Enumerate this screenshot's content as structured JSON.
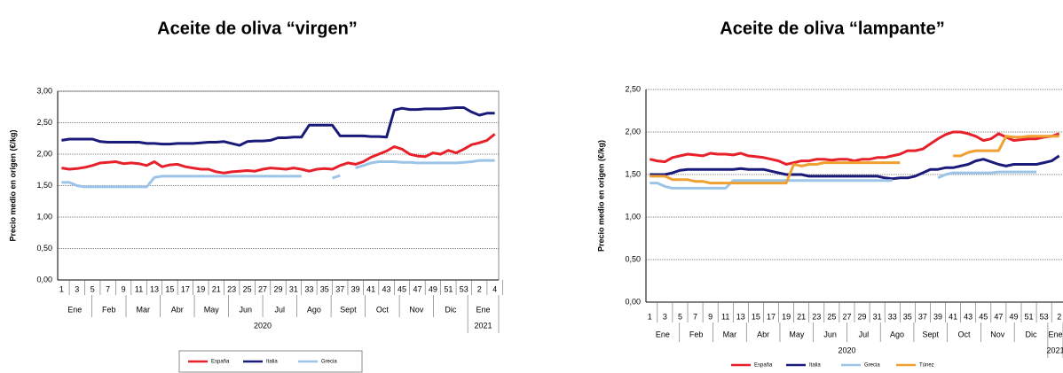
{
  "chart_data": [
    {
      "type": "line",
      "title": "Aceite de oliva “virgen”",
      "ylabel": "Precio medio en origen (€/kg)",
      "categories": [
        "1",
        null,
        "3",
        null,
        "5",
        null,
        "7",
        null,
        "9",
        null,
        "11",
        null,
        "13",
        null,
        "15",
        null,
        "17",
        null,
        "19",
        null,
        "21",
        null,
        "23",
        null,
        "25",
        null,
        "27",
        null,
        "29",
        null,
        "31",
        null,
        "33",
        null,
        "35",
        null,
        "37",
        null,
        "39",
        null,
        "41",
        null,
        "43",
        null,
        "45",
        null,
        "47",
        null,
        "49",
        null,
        "51",
        null,
        "53",
        null,
        "2",
        null,
        "4"
      ],
      "months": [
        "Ene",
        "Feb",
        "Mar",
        "Abr",
        "May",
        "Jun",
        "Jul",
        "Ago",
        "Sept",
        "Oct",
        "Nov",
        "Dic",
        "Ene"
      ],
      "years": [
        "2020",
        "2021"
      ],
      "ylim": [
        0,
        3
      ],
      "yticks": [
        {
          "value": 0,
          "label": "0,00"
        },
        {
          "value": 0.5,
          "label": "0,50"
        },
        {
          "value": 1,
          "label": "1,00"
        },
        {
          "value": 1.5,
          "label": "1,50"
        },
        {
          "value": 2,
          "label": "2,00"
        },
        {
          "value": 2.5,
          "label": "2,50"
        },
        {
          "value": 3,
          "label": "3,00"
        }
      ],
      "grid": true,
      "legend": "bottom",
      "series": [
        {
          "name": "España",
          "color": "#e8202a",
          "values": [
            1.78,
            1.76,
            1.77,
            1.79,
            1.82,
            1.86,
            1.87,
            1.88,
            1.85,
            1.86,
            1.85,
            1.82,
            1.88,
            1.8,
            1.83,
            1.84,
            1.8,
            1.78,
            1.76,
            1.76,
            1.72,
            1.7,
            1.72,
            1.73,
            1.74,
            1.73,
            1.76,
            1.78,
            1.77,
            1.76,
            1.78,
            1.76,
            1.73,
            1.76,
            1.77,
            1.76,
            1.82,
            1.86,
            1.84,
            1.88,
            1.95,
            2.0,
            2.05,
            2.12,
            2.08,
            2.0,
            1.97,
            1.96,
            2.02,
            2.0,
            2.06,
            2.02,
            2.08,
            2.15,
            2.18,
            2.22,
            2.32
          ]
        },
        {
          "name": "Italia",
          "color": "#1a1a7a",
          "values": [
            2.22,
            2.24,
            2.24,
            2.24,
            2.24,
            2.2,
            2.19,
            2.19,
            2.19,
            2.19,
            2.19,
            2.17,
            2.17,
            2.16,
            2.16,
            2.17,
            2.17,
            2.17,
            2.18,
            2.19,
            2.19,
            2.2,
            2.17,
            2.14,
            2.2,
            2.21,
            2.21,
            2.22,
            2.26,
            2.26,
            2.27,
            2.27,
            2.46,
            2.46,
            2.46,
            2.46,
            2.29,
            2.29,
            2.29,
            2.29,
            2.28,
            2.28,
            2.27,
            2.7,
            2.73,
            2.71,
            2.71,
            2.72,
            2.72,
            2.72,
            2.73,
            2.74,
            2.74,
            2.67,
            2.62,
            2.65,
            2.65
          ]
        },
        {
          "name": "Grecia",
          "color": "#9cc3e8",
          "values": [
            1.55,
            1.55,
            1.5,
            1.48,
            1.48,
            1.48,
            1.48,
            1.48,
            1.48,
            1.48,
            1.48,
            1.48,
            1.63,
            1.65,
            1.65,
            1.65,
            1.65,
            1.65,
            1.65,
            1.65,
            1.65,
            1.65,
            1.65,
            1.65,
            1.65,
            1.65,
            1.65,
            1.65,
            1.65,
            1.65,
            1.65,
            1.65,
            null,
            null,
            null,
            1.62,
            1.66,
            null,
            1.78,
            1.82,
            1.86,
            1.88,
            1.88,
            1.88,
            1.87,
            1.87,
            1.86,
            1.86,
            1.86,
            1.86,
            1.86,
            1.86,
            1.87,
            1.88,
            1.9,
            1.9,
            1.9
          ]
        }
      ]
    },
    {
      "type": "line",
      "title": "Aceite de oliva “lampante”",
      "ylabel": "Precio medio en origen (€/kg)",
      "categories": [
        "1",
        null,
        "3",
        null,
        "5",
        null,
        "7",
        null,
        "9",
        null,
        "11",
        null,
        "13",
        null,
        "15",
        null,
        "17",
        null,
        "19",
        null,
        "21",
        null,
        "23",
        null,
        "25",
        null,
        "27",
        null,
        "29",
        null,
        "31",
        null,
        "33",
        null,
        "35",
        null,
        "37",
        null,
        "39",
        null,
        "41",
        null,
        "43",
        null,
        "45",
        null,
        "47",
        null,
        "49",
        null,
        "51",
        null,
        "53",
        null,
        "2"
      ],
      "months": [
        "Ene",
        "Feb",
        "Mar",
        "Abr",
        "May",
        "Jun",
        "Jul",
        "Ago",
        "Sept",
        "Oct",
        "Nov",
        "Dic",
        "Ene"
      ],
      "years": [
        "2020",
        "2021"
      ],
      "ylim": [
        0,
        2.5
      ],
      "yticks": [
        {
          "value": 0,
          "label": "0,00"
        },
        {
          "value": 0.5,
          "label": "0,50"
        },
        {
          "value": 1,
          "label": "1,00"
        },
        {
          "value": 1.5,
          "label": "1,50"
        },
        {
          "value": 2,
          "label": "2,00"
        },
        {
          "value": 2.5,
          "label": "2,50"
        }
      ],
      "grid": true,
      "legend": "bottom",
      "series": [
        {
          "name": "España",
          "color": "#e8202a",
          "values": [
            1.68,
            1.66,
            1.65,
            1.7,
            1.72,
            1.74,
            1.73,
            1.72,
            1.75,
            1.74,
            1.74,
            1.73,
            1.75,
            1.72,
            1.71,
            1.7,
            1.68,
            1.66,
            1.62,
            1.64,
            1.66,
            1.66,
            1.68,
            1.68,
            1.67,
            1.68,
            1.68,
            1.66,
            1.68,
            1.68,
            1.7,
            1.7,
            1.72,
            1.74,
            1.78,
            1.78,
            1.8,
            1.86,
            1.92,
            1.97,
            2.0,
            2.0,
            1.98,
            1.95,
            1.9,
            1.92,
            1.98,
            1.94,
            1.9,
            1.91,
            1.92,
            1.92,
            1.94,
            1.95,
            1.98
          ]
        },
        {
          "name": "Italia",
          "color": "#1a1a7a",
          "values": [
            1.5,
            1.5,
            1.5,
            1.52,
            1.55,
            1.56,
            1.56,
            1.56,
            1.56,
            1.56,
            1.56,
            1.56,
            1.57,
            1.56,
            1.56,
            1.56,
            1.54,
            1.52,
            1.5,
            1.5,
            1.5,
            1.48,
            1.48,
            1.48,
            1.48,
            1.48,
            1.48,
            1.48,
            1.48,
            1.48,
            1.48,
            1.46,
            1.45,
            1.46,
            1.46,
            1.48,
            1.52,
            1.56,
            1.56,
            1.58,
            1.58,
            1.6,
            1.62,
            1.66,
            1.68,
            1.65,
            1.62,
            1.6,
            1.62,
            1.62,
            1.62,
            1.62,
            1.64,
            1.66,
            1.72
          ]
        },
        {
          "name": "Grecia",
          "color": "#9cc3e8",
          "values": [
            1.4,
            1.4,
            1.36,
            1.34,
            1.34,
            1.34,
            1.34,
            1.34,
            1.34,
            1.34,
            1.34,
            1.43,
            1.43,
            1.43,
            1.43,
            1.43,
            1.43,
            1.43,
            1.43,
            1.43,
            1.43,
            1.43,
            1.43,
            1.43,
            1.43,
            1.43,
            1.43,
            1.43,
            1.43,
            1.43,
            1.43,
            1.43,
            1.43,
            null,
            null,
            null,
            1.43,
            null,
            1.46,
            1.5,
            1.52,
            1.52,
            1.52,
            1.52,
            1.52,
            1.52,
            1.53,
            1.53,
            1.53,
            1.53,
            1.53,
            1.53,
            null,
            null,
            null
          ]
        },
        {
          "name": "Túnez",
          "color": "#f0a030",
          "values": [
            1.48,
            1.48,
            1.48,
            1.44,
            1.44,
            1.44,
            1.42,
            1.42,
            1.4,
            1.4,
            1.4,
            1.4,
            1.4,
            1.4,
            1.4,
            1.4,
            1.4,
            1.4,
            1.4,
            1.62,
            1.6,
            1.62,
            1.62,
            1.64,
            1.64,
            1.64,
            1.64,
            1.64,
            1.64,
            1.64,
            1.64,
            1.64,
            1.64,
            1.64,
            null,
            null,
            null,
            null,
            null,
            null,
            1.72,
            1.72,
            1.76,
            1.78,
            1.78,
            1.78,
            1.78,
            1.95,
            1.94,
            1.94,
            1.95,
            1.95,
            1.95,
            1.95,
            1.95
          ]
        }
      ]
    }
  ]
}
